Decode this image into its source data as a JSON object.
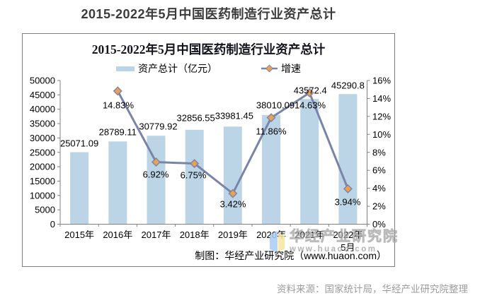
{
  "page": {
    "title": "2015-2022年5月中国医药制造行业资产总计",
    "source_note": "资料来源：国家统计局，华经产业研究院整理"
  },
  "chart": {
    "title": "2015-2022年5月中国医药制造行业资产总计",
    "legend": {
      "bar": "资产总计（亿元）",
      "line": "增速"
    },
    "credit": "制图：华经产业研究院（www.huaon.com）",
    "watermark": {
      "name": "华经产业研究院",
      "url": "www.huaon.com",
      "logo": "huajing-flag-logo"
    }
  },
  "chart_data": {
    "type": "bar+line combo",
    "title": "2015-2022年5月中国医药制造行业资产总计",
    "categories": [
      "2015年",
      "2016年",
      "2017年",
      "2018年",
      "2019年",
      "2020年",
      "2021年",
      "2022年5月"
    ],
    "x_labels": [
      {
        "line1": "2015年"
      },
      {
        "line1": "2016年"
      },
      {
        "line1": "2017年"
      },
      {
        "line1": "2018年"
      },
      {
        "line1": "2019年"
      },
      {
        "line1": "2020年"
      },
      {
        "line1": "2021年"
      },
      {
        "line1": "2022年",
        "line2": "5月"
      }
    ],
    "series": [
      {
        "name": "资产总计（亿元）",
        "type": "bar",
        "axis": "left",
        "values": [
          25071.09,
          28789.11,
          30779.92,
          32856.55,
          33981.45,
          38010.09,
          43572.4,
          45290.8
        ],
        "labels": [
          "25071.09",
          "28789.11",
          "30779.92",
          "32856.55",
          "33981.45",
          "38010.09",
          "43572.4",
          "45290.8"
        ]
      },
      {
        "name": "增速",
        "type": "line",
        "axis": "right",
        "values": [
          null,
          14.83,
          6.92,
          6.75,
          3.42,
          11.86,
          14.63,
          3.94
        ],
        "labels": [
          null,
          "14.83%",
          "6.92%",
          "6.75%",
          "3.42%",
          "11.86%",
          "14.63%",
          "3.94%"
        ]
      }
    ],
    "left_axis": {
      "min": 0,
      "max": 50000,
      "step": 5000,
      "ticks": [
        "0",
        "5000",
        "10000",
        "15000",
        "20000",
        "25000",
        "30000",
        "35000",
        "40000",
        "45000",
        "50000"
      ]
    },
    "right_axis": {
      "min": 0,
      "max": 16,
      "step": 2,
      "ticks": [
        "0%",
        "2%",
        "4%",
        "6%",
        "8%",
        "10%",
        "12%",
        "14%",
        "16%"
      ]
    },
    "legend_position": "top",
    "grid": false,
    "colors": {
      "bar": "#bcd5e6",
      "line": "#7a83a8",
      "marker": "#eda04f",
      "axis": "#808080",
      "label": "#000000",
      "border": "#7f7f7f"
    }
  }
}
